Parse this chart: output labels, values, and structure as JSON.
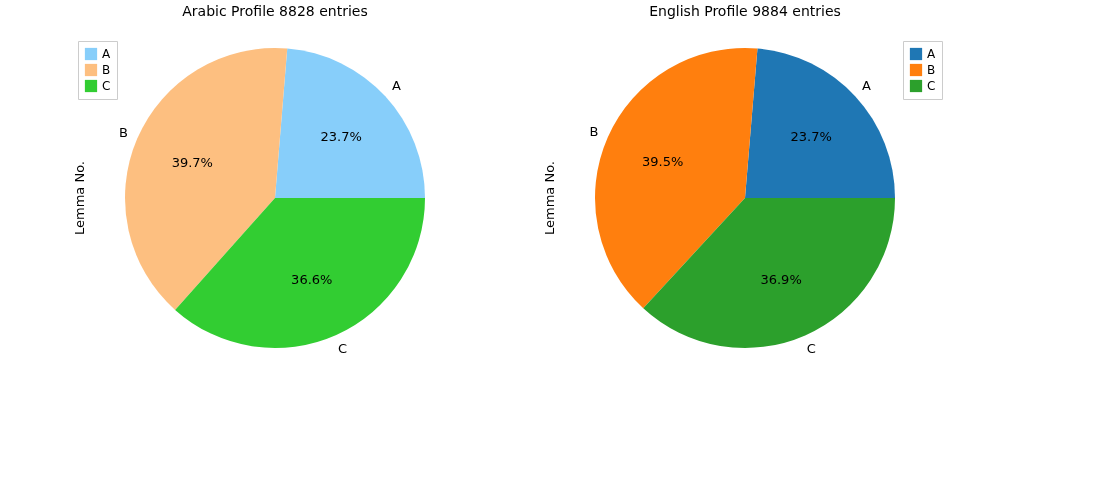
{
  "chart_data": [
    {
      "type": "pie",
      "title": "Arabic Profile 8828 entries",
      "ylabel": "Lemma No.",
      "categories": [
        "A",
        "B",
        "C"
      ],
      "values": [
        23.7,
        39.7,
        36.6
      ],
      "colors": [
        "#87cefa",
        "#fdbf80",
        "#32cd32"
      ],
      "value_labels": [
        "23.7%",
        "39.7%",
        "36.6%"
      ],
      "legend": "top left"
    },
    {
      "type": "pie",
      "title": "English Profile 9884 entries",
      "ylabel": "Lemma No.",
      "categories": [
        "A",
        "B",
        "C"
      ],
      "values": [
        23.7,
        39.5,
        36.9
      ],
      "colors": [
        "#1f77b4",
        "#ff7f0e",
        "#2ca02c"
      ],
      "value_labels": [
        "23.7%",
        "39.5%",
        "36.9%"
      ],
      "legend": "top right"
    }
  ]
}
